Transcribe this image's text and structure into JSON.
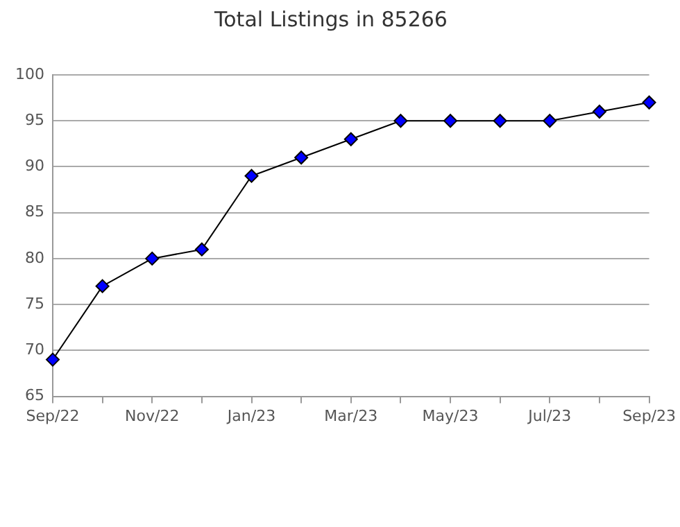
{
  "chart_data": {
    "type": "line",
    "title": "Total Listings in 85266",
    "categories": [
      "Sep/22",
      null,
      "Nov/22",
      null,
      "Jan/23",
      null,
      "Mar/23",
      null,
      "May/23",
      null,
      "Jul/23",
      null,
      "Sep/23"
    ],
    "series": [
      {
        "color": "#0000ff",
        "values": [
          69,
          77,
          80,
          81,
          89,
          91,
          93,
          95,
          95,
          95,
          95,
          96,
          97
        ]
      }
    ],
    "ylim": [
      65,
      100
    ],
    "yticks": [
      65,
      70,
      75,
      80,
      85,
      90,
      95,
      100
    ],
    "grid": "y",
    "legend": false,
    "marker": "diamond",
    "line_style": "solid"
  }
}
